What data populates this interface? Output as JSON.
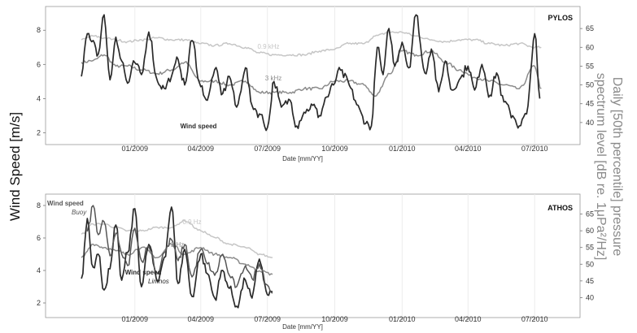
{
  "figure": {
    "ylabel_left": "Wind Speed [m/s]",
    "ylabel_right_line1": "Daily [50th percentile] pressure",
    "ylabel_right_line2": "spectrum level [dB re. 1μPa²/Hz]"
  },
  "colors": {
    "wind": "#2a2a2a",
    "wind_buoy": "#555555",
    "khz3": "#8c8c8c",
    "khz09": "#c6c6c6",
    "grid": "#ececec",
    "frame": "#999999"
  },
  "chart_data": [
    {
      "type": "line",
      "title": "PYLOS",
      "xlabel": "Date [mm/YY]",
      "x_ticks": [
        "01/2009",
        "04/2009",
        "07/2009",
        "10/2009",
        "01/2010",
        "04/2010",
        "07/2010"
      ],
      "yleft_ticks": [
        "2",
        "4",
        "6",
        "8"
      ],
      "yright_ticks": [
        "40",
        "45",
        "50",
        "55",
        "60",
        "65"
      ],
      "ylim_left": [
        1.5,
        9.2
      ],
      "ylim_right": [
        35,
        70
      ],
      "grid": "vertical",
      "series": [
        {
          "name": "Wind speed",
          "axis": "left",
          "x": [
            "2008-10-20",
            "2008-10-28",
            "2008-11-05",
            "2008-11-12",
            "2008-11-20",
            "2008-11-28",
            "2008-12-06",
            "2008-12-14",
            "2008-12-22",
            "2009-01-01",
            "2009-01-10",
            "2009-01-20",
            "2009-02-01",
            "2009-02-10",
            "2009-02-20",
            "2009-03-01",
            "2009-03-10",
            "2009-03-20",
            "2009-04-01",
            "2009-04-10",
            "2009-04-20",
            "2009-05-01",
            "2009-05-10",
            "2009-05-20",
            "2009-06-01",
            "2009-06-10",
            "2009-06-20",
            "2009-07-01",
            "2009-07-10",
            "2009-07-20",
            "2009-08-01",
            "2009-08-10",
            "2009-08-20",
            "2009-09-01",
            "2009-09-10",
            "2009-09-20",
            "2009-10-01",
            "2009-10-05",
            "2009-11-20",
            "2009-11-28",
            "2009-12-06",
            "2009-12-14",
            "2009-12-22",
            "2010-01-01",
            "2010-01-10",
            "2010-01-20",
            "2010-02-01",
            "2010-02-10",
            "2010-02-20",
            "2010-03-01",
            "2010-03-10",
            "2010-03-20",
            "2010-04-01",
            "2010-04-10",
            "2010-04-20",
            "2010-05-01",
            "2010-05-10",
            "2010-05-20",
            "2010-06-01",
            "2010-06-10",
            "2010-06-20",
            "2010-07-01",
            "2010-07-08"
          ],
          "values": [
            5.3,
            7.8,
            7.4,
            6.6,
            8.9,
            5.1,
            7.6,
            6.2,
            4.9,
            6.1,
            5.4,
            7.9,
            5.0,
            4.6,
            5.3,
            6.3,
            4.8,
            7.4,
            4.7,
            3.9,
            5.7,
            4.3,
            5.3,
            3.5,
            5.8,
            3.6,
            3.1,
            2.3,
            5.0,
            3.5,
            3.9,
            2.4,
            3.2,
            3.6,
            3.0,
            4.1,
            4.9,
            5.6,
            2.4,
            7.0,
            5.4,
            8.1,
            5.9,
            7.3,
            5.8,
            8.9,
            5.5,
            6.9,
            4.4,
            6.2,
            4.5,
            5.1,
            5.9,
            4.5,
            6.0,
            4.2,
            5.5,
            3.8,
            3.0,
            2.4,
            3.1,
            7.8,
            4.0
          ]
        },
        {
          "name": "3 kHz",
          "axis": "right",
          "x": [
            "2008-10-20",
            "2008-11-05",
            "2008-11-20",
            "2008-12-06",
            "2008-12-22",
            "2009-01-10",
            "2009-02-01",
            "2009-02-20",
            "2009-03-10",
            "2009-04-01",
            "2009-04-20",
            "2009-05-10",
            "2009-06-01",
            "2009-06-20",
            "2009-07-10",
            "2009-08-01",
            "2009-08-20",
            "2009-09-10",
            "2009-10-01",
            "2009-10-20",
            "2009-11-10",
            "2009-11-25",
            "2009-12-15",
            "2010-01-01",
            "2010-01-20",
            "2010-02-10",
            "2010-03-01",
            "2010-03-20",
            "2010-04-10",
            "2010-05-01",
            "2010-05-20",
            "2010-06-10",
            "2010-07-01",
            "2010-07-10"
          ],
          "values": [
            56,
            56.5,
            58,
            55,
            55,
            54,
            53,
            54,
            56,
            51,
            51,
            50,
            51,
            48,
            48,
            48,
            49,
            49,
            51,
            51,
            50,
            47,
            53,
            59,
            58,
            59,
            56,
            54,
            52,
            51,
            50,
            49,
            55,
            49
          ]
        },
        {
          "name": "0.9 kHz",
          "axis": "right",
          "x": [
            "2008-10-20",
            "2008-11-05",
            "2008-11-20",
            "2008-12-06",
            "2008-12-22",
            "2009-01-10",
            "2009-02-01",
            "2009-02-20",
            "2009-03-10",
            "2009-04-01",
            "2009-04-20",
            "2009-05-10",
            "2009-06-01",
            "2009-06-20",
            "2009-07-10",
            "2009-08-01",
            "2009-08-20",
            "2009-09-10",
            "2009-10-01",
            "2009-10-20",
            "2009-11-10",
            "2009-11-25",
            "2009-12-15",
            "2010-01-01",
            "2010-01-20",
            "2010-02-10",
            "2010-03-01",
            "2010-03-20",
            "2010-04-10",
            "2010-05-01",
            "2010-05-20",
            "2010-06-10",
            "2010-07-01",
            "2010-07-10"
          ],
          "values": [
            62,
            63,
            62.5,
            62,
            61.5,
            62,
            62.5,
            62,
            62,
            61,
            60.5,
            61,
            60,
            58.5,
            58,
            58,
            58,
            59,
            59.5,
            61,
            61,
            63,
            64,
            64,
            63,
            62,
            61.5,
            62,
            62,
            61,
            60.5,
            61,
            60,
            60
          ]
        }
      ],
      "annotations": [
        {
          "text": "0.9 kHz",
          "series": "0.9 kHz"
        },
        {
          "text": "3 kHz",
          "series": "3 kHz"
        },
        {
          "text": "Wind speed",
          "series": "Wind speed"
        }
      ]
    },
    {
      "type": "line",
      "title": "ATHOS",
      "xlabel": "Date [mm/YY]",
      "x_ticks": [
        "01/2009",
        "04/2009",
        "07/2009",
        "10/2009",
        "01/2010",
        "04/2010",
        "07/2010"
      ],
      "yleft_ticks": [
        "2",
        "4",
        "6",
        "8"
      ],
      "yright_ticks": [
        "40",
        "45",
        "50",
        "55",
        "60",
        "65"
      ],
      "ylim_left": [
        1.3,
        8.5
      ],
      "ylim_right": [
        35,
        70
      ],
      "grid": "vertical",
      "series": [
        {
          "name": "Wind speed Limnos",
          "axis": "left",
          "x": [
            "2008-10-20",
            "2008-10-28",
            "2008-11-05",
            "2008-11-12",
            "2008-11-20",
            "2008-11-28",
            "2008-12-06",
            "2008-12-14",
            "2008-12-22",
            "2009-01-01",
            "2009-01-10",
            "2009-01-20",
            "2009-02-01",
            "2009-02-10",
            "2009-02-20",
            "2009-03-01",
            "2009-03-10",
            "2009-03-20",
            "2009-04-01",
            "2009-04-10",
            "2009-04-20",
            "2009-05-01",
            "2009-05-10",
            "2009-05-20",
            "2009-06-01",
            "2009-06-10",
            "2009-06-20",
            "2009-07-01",
            "2009-07-08"
          ],
          "values": [
            3.5,
            7.2,
            4.2,
            5.0,
            2.8,
            4.1,
            6.8,
            3.4,
            5.1,
            7.8,
            3.0,
            5.6,
            3.3,
            4.8,
            7.9,
            3.2,
            5.3,
            2.4,
            5.0,
            3.8,
            2.3,
            4.0,
            2.9,
            1.8,
            3.4,
            2.3,
            4.7,
            2.5,
            2.7
          ]
        },
        {
          "name": "Wind speed Buoy",
          "axis": "left",
          "x": [
            "2008-10-28",
            "2008-11-05",
            "2008-11-12",
            "2008-11-20",
            "2008-11-28",
            "2008-12-06",
            "2008-12-14",
            "2008-12-22",
            "2009-01-01",
            "2009-01-10",
            "2009-01-20",
            "2009-02-01",
            "2009-02-10",
            "2009-02-20",
            "2009-03-01",
            "2009-03-10",
            "2009-03-20",
            "2009-04-01",
            "2009-04-10",
            "2009-04-20",
            "2009-05-01",
            "2009-05-10",
            "2009-05-20",
            "2009-06-01",
            "2009-06-10",
            "2009-06-20",
            "2009-07-01",
            "2009-07-08"
          ],
          "values": [
            6.4,
            8.0,
            6.2,
            7.0,
            4.9,
            6.3,
            5.0,
            4.3,
            6.6,
            4.6,
            5.5,
            3.8,
            5.1,
            5.9,
            4.6,
            5.6,
            3.6,
            5.3,
            4.4,
            3.7,
            5.0,
            3.7,
            3.0,
            4.3,
            3.5,
            4.4,
            3.1,
            2.6
          ]
        },
        {
          "name": "3 Hz",
          "axis": "right",
          "x": [
            "2008-10-20",
            "2008-11-05",
            "2008-11-20",
            "2008-12-06",
            "2008-12-22",
            "2009-01-10",
            "2009-02-01",
            "2009-02-20",
            "2009-03-10",
            "2009-04-01",
            "2009-04-20",
            "2009-05-10",
            "2009-06-01",
            "2009-06-20",
            "2009-07-08"
          ],
          "values": [
            52,
            56,
            55,
            54,
            53,
            55,
            52,
            56,
            53,
            55,
            53,
            52,
            50,
            48,
            47
          ]
        },
        {
          "name": "0.9 Hz",
          "axis": "right",
          "x": [
            "2008-10-20",
            "2008-11-05",
            "2008-11-20",
            "2008-12-06",
            "2008-12-22",
            "2009-01-10",
            "2009-02-01",
            "2009-02-20",
            "2009-03-10",
            "2009-04-01",
            "2009-04-20",
            "2009-05-10",
            "2009-06-01",
            "2009-06-20",
            "2009-07-08"
          ],
          "values": [
            59,
            62,
            62,
            61,
            60,
            60,
            61,
            61,
            63,
            60,
            58,
            56,
            55,
            53,
            52
          ]
        }
      ],
      "annotations": [
        {
          "text": "Wind speed",
          "series": "Wind speed Buoy",
          "sub": "Buoy"
        },
        {
          "text": "0.9 Hz",
          "series": "0.9 Hz"
        },
        {
          "text": "3 Hz",
          "series": "3 Hz"
        },
        {
          "text": "Wind speed",
          "series": "Wind speed Limnos",
          "sub": "Limnos"
        }
      ]
    }
  ]
}
